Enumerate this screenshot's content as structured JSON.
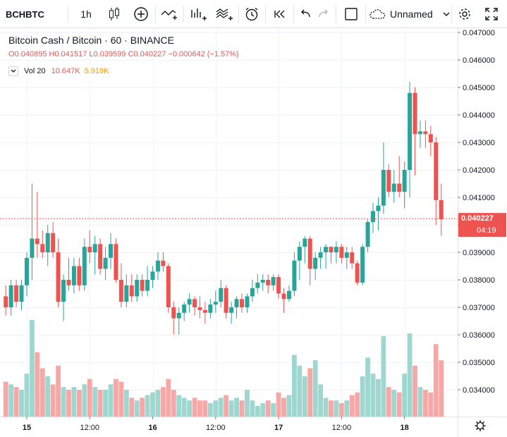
{
  "toolbar": {
    "symbol": "BCHBTC",
    "interval": "1h",
    "layout_name": "Unnamed",
    "icons": [
      "candles-icon",
      "add-indicator-icon",
      "indicators-icon",
      "compare-icon",
      "templates-icon",
      "alert-icon",
      "replay-icon",
      "undo-icon",
      "redo-icon",
      "layout-icon",
      "cloud-icon",
      "settings-icon",
      "fullscreen-icon"
    ]
  },
  "legend": {
    "title": "Bitcoin Cash / Bitcoin · 60 · BINANCE",
    "o_label": "O",
    "o": "0.040895",
    "h_label": "H",
    "h": "0.041517",
    "l_label": "L",
    "l": "0.039599",
    "c_label": "C",
    "c": "0.040227",
    "change": "−0.000642 (−1.57%)"
  },
  "volume_legend": {
    "label": "Vol 20",
    "value1": "10.647K",
    "value2": "5.919K"
  },
  "price_label": {
    "price": "0.040227",
    "countdown": "04:19"
  },
  "colors": {
    "up": "#26a69a",
    "down": "#ef5350",
    "vol_up": "#9fd6d0",
    "vol_down": "#f6a7a6",
    "grid": "#f0f3fa",
    "axis": "#e0e3eb"
  },
  "chart_data": {
    "type": "candlestick",
    "title": "Bitcoin Cash / Bitcoin · 60 · BINANCE",
    "y_ticks": [
      "0.047000",
      "0.046000",
      "0.045000",
      "0.044000",
      "0.043000",
      "0.042000",
      "0.041000",
      "0.040000",
      "0.039000",
      "0.038000",
      "0.037000",
      "0.036000",
      "0.035000",
      "0.034000"
    ],
    "ylim": [
      0.0333,
      0.0475
    ],
    "x_ticks": [
      {
        "label": "15",
        "index": 4,
        "bold": true
      },
      {
        "label": "12:00",
        "index": 16,
        "bold": false
      },
      {
        "label": "16",
        "index": 28,
        "bold": true
      },
      {
        "label": "12:00",
        "index": 40,
        "bold": false
      },
      {
        "label": "17",
        "index": 52,
        "bold": true
      },
      {
        "label": "12:00",
        "index": 64,
        "bold": false
      },
      {
        "label": "18",
        "index": 76,
        "bold": true
      }
    ],
    "current_price": 0.040227,
    "candles": [
      [
        0.0374,
        0.0378,
        0.0367,
        0.037,
        1.3
      ],
      [
        0.037,
        0.038,
        0.0367,
        0.0378,
        1.2
      ],
      [
        0.0378,
        0.038,
        0.037,
        0.0372,
        1.1
      ],
      [
        0.0372,
        0.038,
        0.0369,
        0.0378,
        1.0
      ],
      [
        0.0378,
        0.039,
        0.0374,
        0.0388,
        1.6
      ],
      [
        0.0388,
        0.0415,
        0.038,
        0.0395,
        3.6
      ],
      [
        0.0395,
        0.0412,
        0.0388,
        0.0393,
        2.4
      ],
      [
        0.0393,
        0.0398,
        0.0388,
        0.039,
        1.8
      ],
      [
        0.039,
        0.04,
        0.0385,
        0.0397,
        1.5
      ],
      [
        0.0397,
        0.0401,
        0.0388,
        0.039,
        1.2
      ],
      [
        0.039,
        0.0395,
        0.037,
        0.0372,
        1.9
      ],
      [
        0.0372,
        0.0382,
        0.0365,
        0.038,
        1.1
      ],
      [
        0.038,
        0.0388,
        0.0376,
        0.0378,
        1.0
      ],
      [
        0.0378,
        0.0388,
        0.0375,
        0.0385,
        1.1
      ],
      [
        0.0385,
        0.0388,
        0.0376,
        0.0378,
        1.0
      ],
      [
        0.0378,
        0.0395,
        0.0376,
        0.0392,
        1.2
      ],
      [
        0.0392,
        0.0398,
        0.0386,
        0.039,
        1.4
      ],
      [
        0.039,
        0.0396,
        0.0382,
        0.0393,
        1.1
      ],
      [
        0.0393,
        0.0395,
        0.0382,
        0.0384,
        1.0
      ],
      [
        0.0384,
        0.0392,
        0.038,
        0.0388,
        1.0
      ],
      [
        0.0388,
        0.0397,
        0.0384,
        0.0393,
        1.2
      ],
      [
        0.0393,
        0.0395,
        0.0379,
        0.038,
        1.4
      ],
      [
        0.038,
        0.0386,
        0.037,
        0.0372,
        1.3
      ],
      [
        0.0372,
        0.0382,
        0.037,
        0.0378,
        1.0
      ],
      [
        0.0378,
        0.0382,
        0.0372,
        0.0374,
        0.7
      ],
      [
        0.0374,
        0.0382,
        0.0372,
        0.038,
        0.6
      ],
      [
        0.038,
        0.0382,
        0.0374,
        0.0376,
        0.7
      ],
      [
        0.0376,
        0.0385,
        0.0374,
        0.038,
        0.8
      ],
      [
        0.038,
        0.0385,
        0.0377,
        0.0383,
        0.9
      ],
      [
        0.0383,
        0.039,
        0.038,
        0.0387,
        1.0
      ],
      [
        0.0387,
        0.039,
        0.0383,
        0.0385,
        1.1
      ],
      [
        0.0385,
        0.0386,
        0.0368,
        0.037,
        1.4
      ],
      [
        0.037,
        0.0372,
        0.036,
        0.0366,
        1.0
      ],
      [
        0.0366,
        0.037,
        0.036,
        0.0368,
        0.8
      ],
      [
        0.0368,
        0.0372,
        0.0365,
        0.0371,
        0.7
      ],
      [
        0.0371,
        0.0375,
        0.0368,
        0.0373,
        0.6
      ],
      [
        0.0373,
        0.0374,
        0.0367,
        0.037,
        0.7
      ],
      [
        0.037,
        0.0374,
        0.0366,
        0.0369,
        0.6
      ],
      [
        0.0369,
        0.0372,
        0.0364,
        0.0368,
        0.6
      ],
      [
        0.0368,
        0.0373,
        0.0366,
        0.0371,
        0.5
      ],
      [
        0.0371,
        0.0376,
        0.0368,
        0.0372,
        0.6
      ],
      [
        0.0372,
        0.038,
        0.037,
        0.0377,
        0.7
      ],
      [
        0.0377,
        0.0378,
        0.0366,
        0.0368,
        0.8
      ],
      [
        0.0368,
        0.0372,
        0.0364,
        0.037,
        0.6
      ],
      [
        0.037,
        0.0374,
        0.0366,
        0.0373,
        0.7
      ],
      [
        0.0373,
        0.0375,
        0.0368,
        0.037,
        0.6
      ],
      [
        0.037,
        0.0375,
        0.0368,
        0.0374,
        1.0
      ],
      [
        0.0374,
        0.038,
        0.0372,
        0.0377,
        0.6
      ],
      [
        0.0377,
        0.0382,
        0.0375,
        0.0379,
        0.4
      ],
      [
        0.0379,
        0.0382,
        0.0376,
        0.038,
        0.5
      ],
      [
        0.038,
        0.0382,
        0.0375,
        0.0378,
        0.6
      ],
      [
        0.0378,
        0.0382,
        0.0376,
        0.0381,
        0.5
      ],
      [
        0.0381,
        0.0382,
        0.0373,
        0.0375,
        0.9
      ],
      [
        0.0375,
        0.0377,
        0.0368,
        0.0373,
        0.7
      ],
      [
        0.0373,
        0.0378,
        0.0372,
        0.0376,
        0.8
      ],
      [
        0.0376,
        0.039,
        0.0374,
        0.0387,
        2.3
      ],
      [
        0.0387,
        0.0394,
        0.038,
        0.0392,
        1.9
      ],
      [
        0.0392,
        0.0396,
        0.0386,
        0.0395,
        1.5
      ],
      [
        0.0395,
        0.0396,
        0.0378,
        0.0384,
        1.8
      ],
      [
        0.0384,
        0.039,
        0.038,
        0.0388,
        2.1
      ],
      [
        0.0388,
        0.0392,
        0.0384,
        0.039,
        1.2
      ],
      [
        0.039,
        0.0393,
        0.0384,
        0.0392,
        0.7
      ],
      [
        0.0392,
        0.0392,
        0.0386,
        0.039,
        0.6
      ],
      [
        0.039,
        0.0394,
        0.0386,
        0.0392,
        0.6
      ],
      [
        0.0392,
        0.0393,
        0.0386,
        0.0388,
        0.5
      ],
      [
        0.0388,
        0.0392,
        0.0384,
        0.039,
        0.6
      ],
      [
        0.039,
        0.0392,
        0.0384,
        0.0386,
        0.8
      ],
      [
        0.0386,
        0.0387,
        0.0378,
        0.0379,
        0.9
      ],
      [
        0.0379,
        0.0393,
        0.0378,
        0.0392,
        1.5
      ],
      [
        0.0392,
        0.0402,
        0.039,
        0.0401,
        2.2
      ],
      [
        0.0401,
        0.0408,
        0.0397,
        0.0405,
        1.6
      ],
      [
        0.0405,
        0.041,
        0.0398,
        0.0407,
        1.4
      ],
      [
        0.0407,
        0.043,
        0.0404,
        0.042,
        3.0
      ],
      [
        0.042,
        0.0422,
        0.041,
        0.0412,
        1.1
      ],
      [
        0.0412,
        0.042,
        0.0408,
        0.0415,
        1.0
      ],
      [
        0.0415,
        0.0425,
        0.041,
        0.0412,
        0.9
      ],
      [
        0.0412,
        0.0423,
        0.0406,
        0.042,
        1.6
      ],
      [
        0.042,
        0.0452,
        0.041,
        0.0448,
        3.1
      ],
      [
        0.0448,
        0.045,
        0.0418,
        0.0433,
        1.9
      ],
      [
        0.0433,
        0.0438,
        0.0428,
        0.0434,
        1.1
      ],
      [
        0.0434,
        0.0438,
        0.0428,
        0.0433,
        1.0
      ],
      [
        0.0433,
        0.0436,
        0.0425,
        0.043,
        0.9
      ],
      [
        0.043,
        0.0432,
        0.04,
        0.0409,
        2.7
      ],
      [
        0.0409,
        0.0415,
        0.0396,
        0.0402,
        2.1
      ]
    ]
  }
}
